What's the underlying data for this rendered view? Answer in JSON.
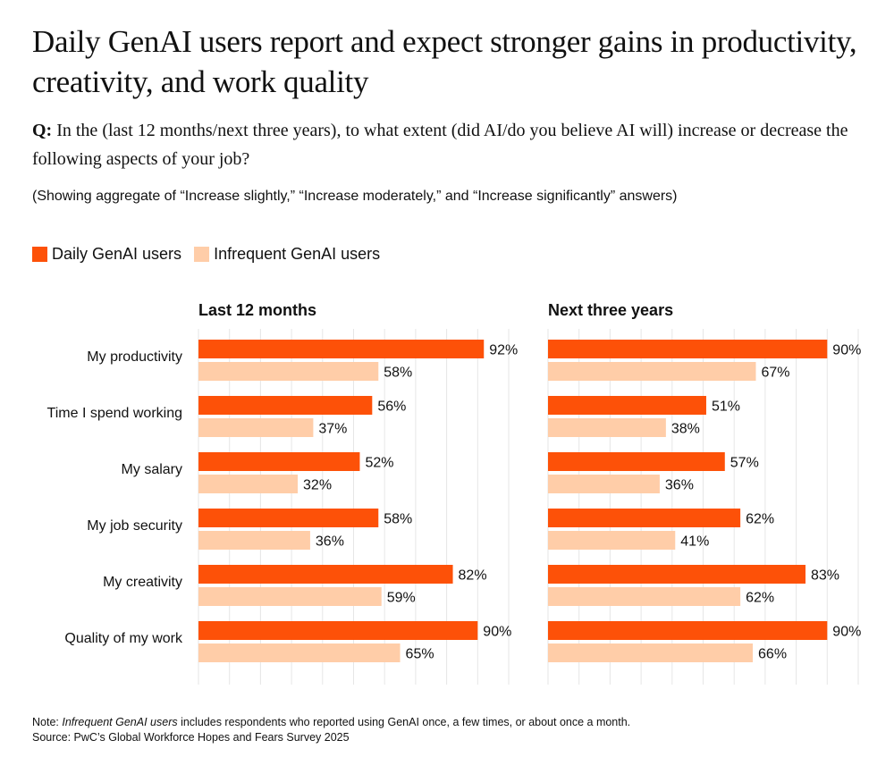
{
  "title": "Daily GenAI users report and expect stronger gains in productivity, creativity, and work quality",
  "question": {
    "prefix": "Q:",
    "text": " In the (last 12 months/next three years), to what extent (did AI/do you believe AI will) increase or decrease the following aspects of your job?"
  },
  "aggregate_note": "(Showing aggregate of “Increase slightly,” “Increase moderately,” and “Increase significantly” answers)",
  "footnote": {
    "note_prefix": "Note: ",
    "note_italic": "Infrequent GenAI users",
    "note_rest": " includes respondents who reported using GenAI once, a few times, or about once a month.",
    "source": "Source: PwC’s Global Workforce Hopes and Fears Survey 2025"
  },
  "colors": {
    "daily": "#FD5108",
    "infrequent": "#FFCDA8",
    "grid": "#E6E6E6"
  },
  "chart_data": [
    {
      "type": "bar",
      "orientation": "horizontal",
      "title": "Last 12 months",
      "categories": [
        "My productivity",
        "Time I spend working",
        "My salary",
        "My job security",
        "My creativity",
        "Quality of my work"
      ],
      "series": [
        {
          "name": "Daily GenAI users",
          "values": [
            92,
            56,
            52,
            58,
            82,
            90
          ]
        },
        {
          "name": "Infrequent GenAI users",
          "values": [
            58,
            37,
            32,
            36,
            59,
            65
          ]
        }
      ],
      "value_format": "{v}%",
      "xlim": [
        0,
        100
      ],
      "grid": true,
      "grid_step": 10,
      "legend": "top-left"
    },
    {
      "type": "bar",
      "orientation": "horizontal",
      "title": "Next three years",
      "categories": [
        "My productivity",
        "Time I spend working",
        "My salary",
        "My job security",
        "My creativity",
        "Quality of my work"
      ],
      "series": [
        {
          "name": "Daily GenAI users",
          "values": [
            90,
            51,
            57,
            62,
            83,
            90
          ]
        },
        {
          "name": "Infrequent GenAI users",
          "values": [
            67,
            38,
            36,
            41,
            62,
            66
          ]
        }
      ],
      "value_format": "{v}%",
      "xlim": [
        0,
        100
      ],
      "grid": true,
      "grid_step": 10,
      "legend": "top-left"
    }
  ]
}
